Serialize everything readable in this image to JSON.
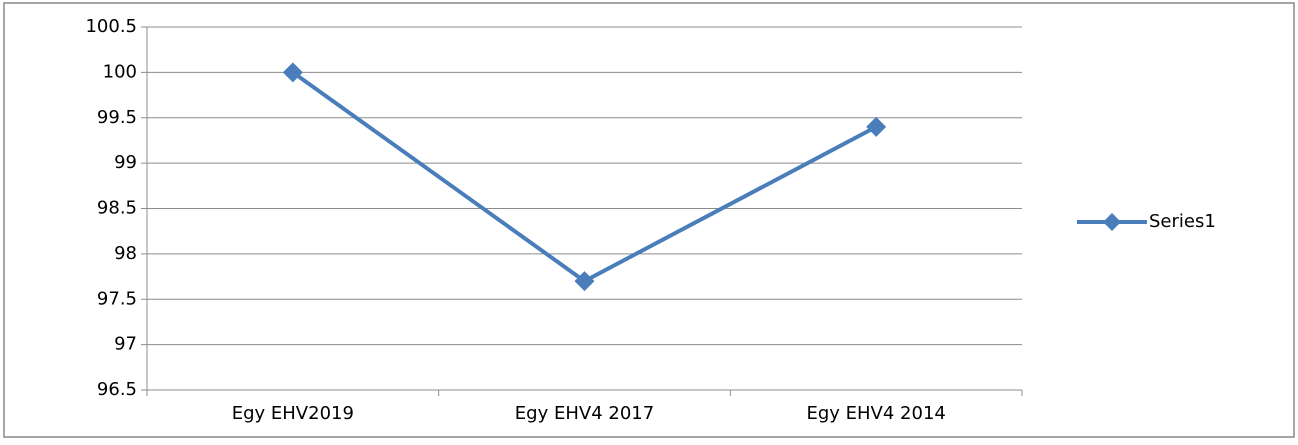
{
  "chart_data": {
    "type": "line",
    "categories": [
      "Egy EHV2019",
      "Egy EHV4 2017",
      "Egy EHV4 2014"
    ],
    "series": [
      {
        "name": "Series1",
        "color": "#4a7ebb",
        "values": [
          100,
          97.7,
          99.4
        ]
      }
    ],
    "ylim": [
      96.5,
      100.5
    ],
    "yticks": [
      96.5,
      97,
      97.5,
      98,
      98.5,
      99,
      99.5,
      100,
      100.5
    ],
    "grid": true,
    "legend": "right"
  }
}
